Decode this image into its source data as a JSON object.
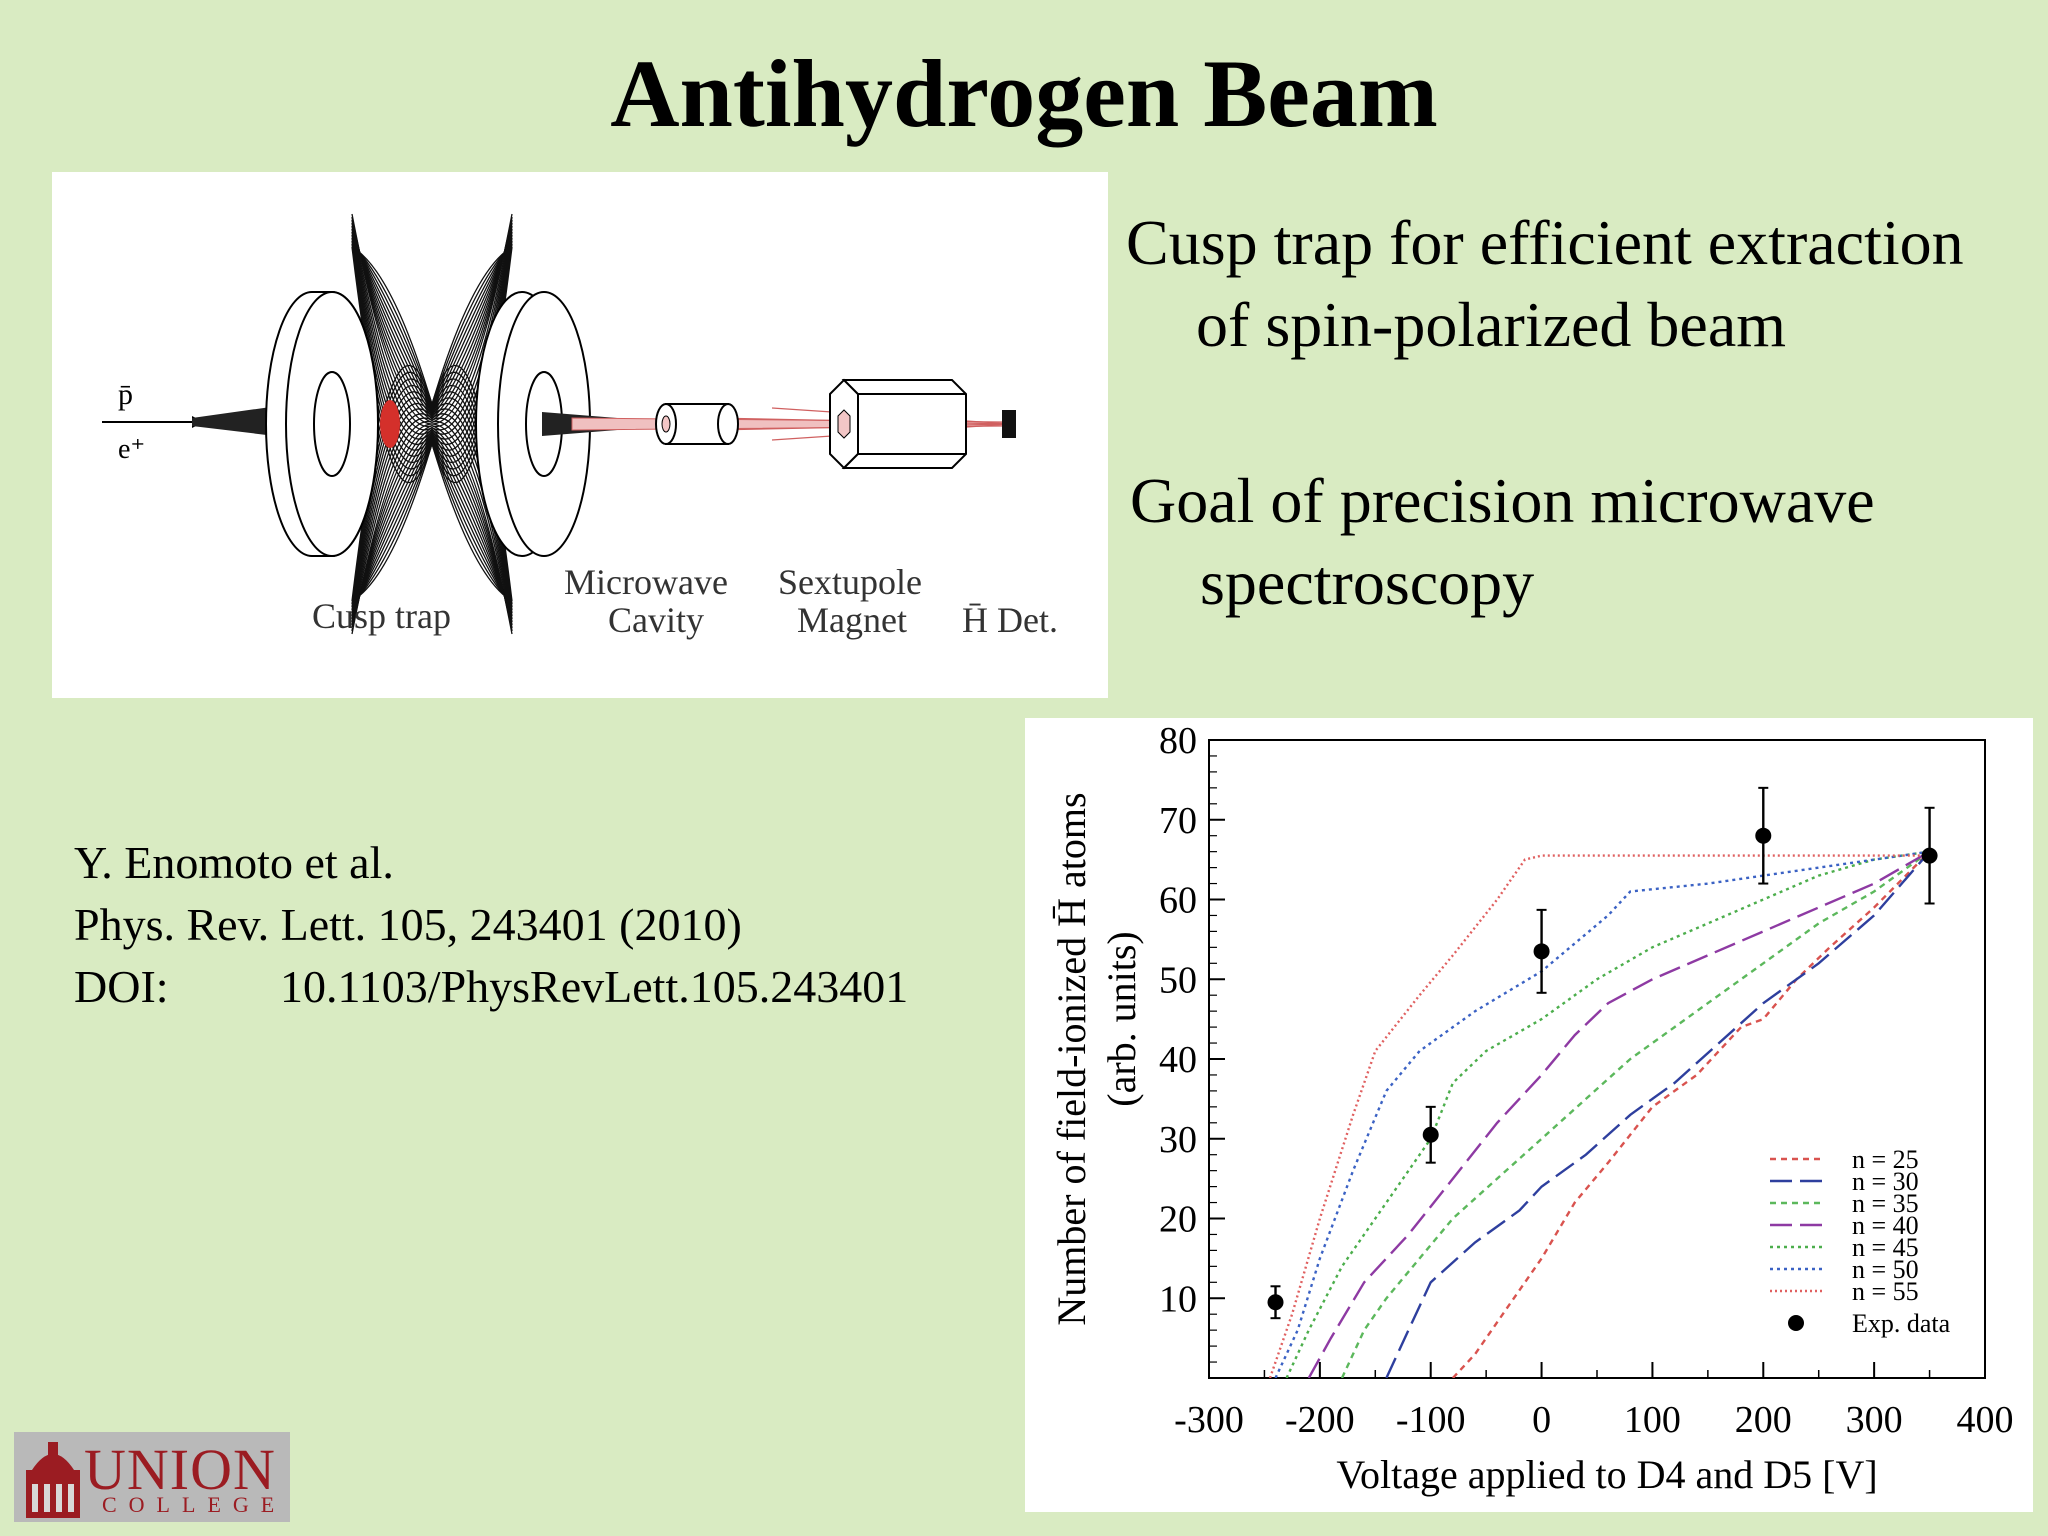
{
  "slide": {
    "title": "Antihydrogen Beam",
    "bullets": [
      {
        "line1": "Cusp trap for efficient extraction",
        "line2": "of spin-polarized beam"
      },
      {
        "line1": "Goal of precision microwave",
        "line2": "spectroscopy"
      }
    ],
    "reference": {
      "authors": "Y. Enomoto et al.",
      "journal": "Phys. Rev. Lett. 105, 243401 (2010)",
      "doi_label": "DOI:",
      "doi": "10.1103/PhysRevLett.105.243401"
    }
  },
  "diagram": {
    "labels": {
      "pbar": "p̄",
      "positron": "e⁺",
      "cusp_trap": "Cusp trap",
      "microwave_1": "Microwave",
      "microwave_2": "Cavity",
      "sextupole_1": "Sextupole",
      "sextupole_2": "Magnet",
      "detector": "H̄ Det."
    }
  },
  "logo": {
    "name": "UNION",
    "sub": "COLLEGE",
    "color": "#9b1c22"
  },
  "colors": {
    "background": "#d9ebc2",
    "trap_red": "#d4302b",
    "beam_pink": "#e8a0a0"
  },
  "chart_data": {
    "type": "line",
    "xlabel": "Voltage applied to D4 and D5 [V]",
    "ylabel_line1": "Number of field-ionized H̄ atoms",
    "ylabel_line2": "(arb. units)",
    "xlim": [
      -300,
      400
    ],
    "ylim": [
      0,
      80
    ],
    "xticks": [
      -300,
      -200,
      -100,
      0,
      100,
      200,
      300,
      400
    ],
    "yticks": [
      10,
      20,
      30,
      40,
      50,
      60,
      70,
      80
    ],
    "grid": false,
    "legend_position": "bottom-right",
    "series": [
      {
        "name": "n = 25",
        "color": "#d9534f",
        "dash": "6,5",
        "x": [
          -80,
          -60,
          -30,
          0,
          30,
          60,
          100,
          140,
          180,
          200,
          230,
          260,
          300,
          350
        ],
        "y": [
          0,
          3,
          9,
          15,
          22,
          27,
          34,
          38,
          44,
          45,
          50,
          54,
          59,
          66
        ]
      },
      {
        "name": "n = 30",
        "color": "#2e3f9e",
        "dash": "22,8",
        "x": [
          -140,
          -120,
          -100,
          -60,
          -20,
          0,
          40,
          80,
          120,
          160,
          200,
          250,
          300,
          350
        ],
        "y": [
          0,
          6,
          12,
          17,
          21,
          24,
          28,
          33,
          37,
          42,
          47,
          52,
          58,
          66
        ]
      },
      {
        "name": "n = 35",
        "color": "#5cb85c",
        "dash": "6,5",
        "x": [
          -180,
          -160,
          -140,
          -110,
          -80,
          -40,
          0,
          40,
          80,
          120,
          160,
          200,
          250,
          300,
          350
        ],
        "y": [
          0,
          6,
          10,
          15,
          20,
          25,
          30,
          35,
          40,
          44,
          48,
          52,
          57,
          61,
          66
        ]
      },
      {
        "name": "n = 40",
        "color": "#8e3aa3",
        "dash": "22,8",
        "x": [
          -210,
          -190,
          -160,
          -120,
          -80,
          -40,
          0,
          30,
          60,
          100,
          150,
          200,
          250,
          300,
          350
        ],
        "y": [
          0,
          5,
          12,
          18,
          25,
          32,
          38,
          43,
          47,
          50,
          53,
          56,
          59,
          62,
          66
        ]
      },
      {
        "name": "n = 45",
        "color": "#4cae4c",
        "dash": "3,4",
        "x": [
          -230,
          -210,
          -180,
          -140,
          -100,
          -80,
          -50,
          0,
          50,
          100,
          150,
          200,
          250,
          300,
          350
        ],
        "y": [
          0,
          6,
          14,
          22,
          30,
          37,
          41,
          45,
          50,
          54,
          57,
          60,
          63,
          65,
          66
        ]
      },
      {
        "name": "n = 50",
        "color": "#3b62c4",
        "dash": "3,4",
        "x": [
          -240,
          -220,
          -200,
          -170,
          -140,
          -110,
          -60,
          0,
          60,
          80,
          150,
          200,
          250,
          300,
          350
        ],
        "y": [
          0,
          6,
          15,
          26,
          36,
          41,
          46,
          51,
          58,
          61,
          62,
          63,
          64,
          65,
          66
        ]
      },
      {
        "name": "n = 55",
        "color": "#e06060",
        "dash": "2,3",
        "x": [
          -245,
          -225,
          -200,
          -170,
          -150,
          -110,
          -80,
          -40,
          -15,
          0,
          50,
          100,
          200,
          300,
          350
        ],
        "y": [
          0,
          8,
          20,
          33,
          41,
          48,
          53,
          60,
          65,
          65.5,
          65.5,
          65.5,
          65.5,
          65.5,
          65.5
        ]
      }
    ],
    "exp_data": {
      "name": "Exp. data",
      "x": [
        -240,
        -100,
        0,
        200,
        350
      ],
      "y": [
        9.5,
        30.5,
        53.5,
        68,
        65.5
      ],
      "err": [
        2,
        3.5,
        5.2,
        6,
        6
      ]
    }
  }
}
